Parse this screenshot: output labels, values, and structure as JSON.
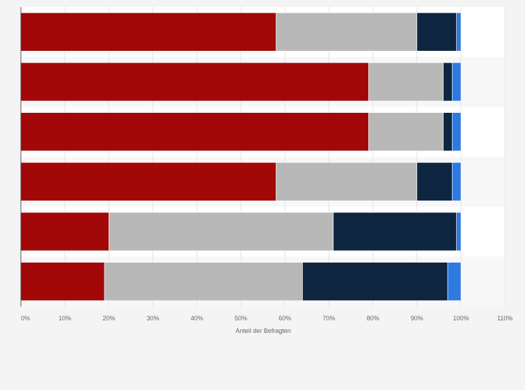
{
  "chart_data": {
    "type": "bar",
    "orientation": "horizontal",
    "stacked": true,
    "title": "",
    "xlabel": "Anteil der Befragten",
    "ylabel": "",
    "xlim": [
      0,
      110
    ],
    "x_ticks": [
      "0%",
      "10%",
      "20%",
      "30%",
      "40%",
      "50%",
      "60%",
      "70%",
      "80%",
      "90%",
      "100%",
      "110%"
    ],
    "categories": [
      "",
      "",
      "",
      "",
      "",
      ""
    ],
    "series": [
      {
        "color": "#a20808",
        "values": [
          58,
          79,
          79,
          58,
          20,
          19
        ]
      },
      {
        "color": "#b8b8b8",
        "values": [
          32,
          17,
          17,
          32,
          51,
          45
        ]
      },
      {
        "color": "#0f2640",
        "values": [
          9,
          2,
          2,
          8,
          28,
          33
        ]
      },
      {
        "color": "#2f7ae0",
        "values": [
          1,
          2,
          2,
          2,
          1,
          3
        ]
      }
    ],
    "grid": true,
    "legend": "none"
  }
}
